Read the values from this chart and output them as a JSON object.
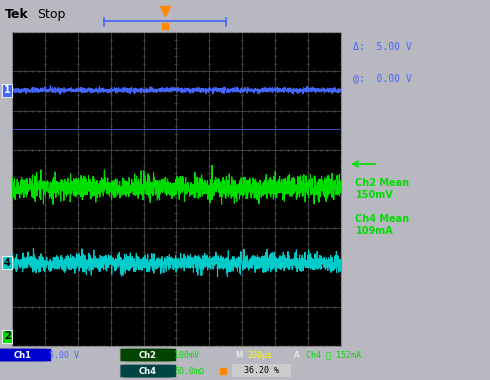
{
  "outer_bg": "#b8b8c0",
  "screen_bg": "#000000",
  "grid_color": "#555555",
  "grid_dot_color": "#444444",
  "ch1_color": "#4466ff",
  "ch2_color": "#00dd00",
  "ch4_color": "#00cccc",
  "ch1_level": 0.815,
  "ch2_level": 0.505,
  "ch4_level": 0.265,
  "ch1_noise": 0.004,
  "ch2_noise": 0.018,
  "ch4_noise": 0.014,
  "n_points": 1800,
  "grid_rows": 8,
  "grid_cols": 10,
  "marker_color": "#ff8800",
  "delta_text": "Δ:  5.00 V",
  "at_text": "@:  0.00 V",
  "ch2_mean_text": "Ch2 Mean\n150mV",
  "ch4_mean_text": "Ch4 Mean\n109mA",
  "ch1_ref": "1",
  "ch4_ref": "4",
  "ch2_ref": "2",
  "status_bar_bg": "#000080",
  "figwidth": 4.9,
  "figheight": 3.8,
  "dpi": 100
}
